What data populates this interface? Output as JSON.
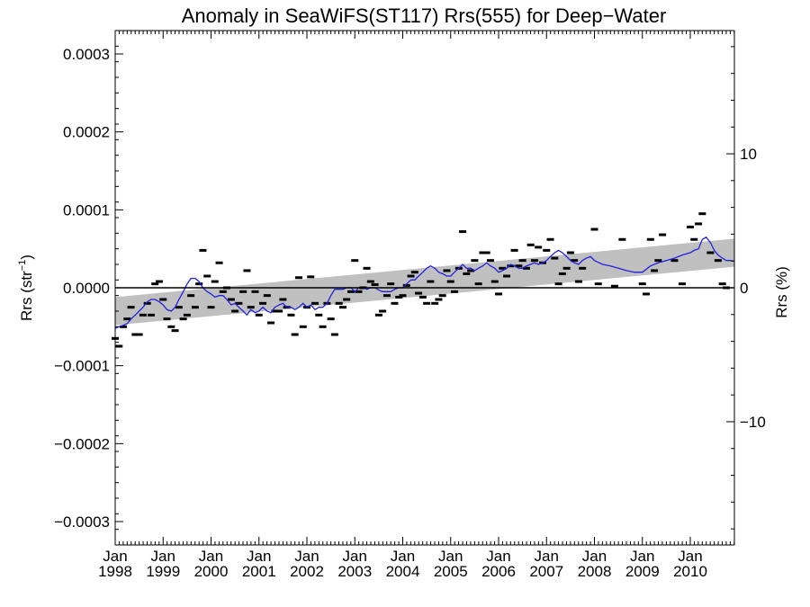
{
  "chart_data": {
    "type": "line",
    "title": "Anomaly in SeaWiFS(ST117) Rrs(555) for Deep−Water",
    "ylabel": "Rrs (str⁻¹)",
    "ylabel_base": "Rrs (str",
    "ylabel_sup": "−1",
    "ylabel_close": ")",
    "y2label": "Rrs (%)",
    "ylim": [
      -0.00033,
      0.00033
    ],
    "y_ticks": [
      -0.0003,
      -0.0002,
      -0.0001,
      0.0,
      0.0001,
      0.0002,
      0.0003
    ],
    "y_tick_labels": [
      "−0.0003",
      "−0.0002",
      "−0.0001",
      "0.0000",
      "0.0001",
      "0.0002",
      "0.0003"
    ],
    "y2lim": [
      -19.2,
      19.2
    ],
    "y2_ticks": [
      -10,
      0,
      10
    ],
    "y2_tick_labels": [
      "−10",
      "0",
      "10"
    ],
    "xlim": [
      1998.0,
      2010.92
    ],
    "x_ticks": [
      1998,
      1999,
      2000,
      2001,
      2002,
      2003,
      2004,
      2005,
      2006,
      2007,
      2008,
      2009,
      2010
    ],
    "x_tick_labels_month": [
      "Jan",
      "Jan",
      "Jan",
      "Jan",
      "Jan",
      "Jan",
      "Jan",
      "Jan",
      "Jan",
      "Jan",
      "Jan",
      "Jan",
      "Jan"
    ],
    "x_tick_labels_year": [
      "1998",
      "1999",
      "2000",
      "2001",
      "2002",
      "2003",
      "2004",
      "2005",
      "2006",
      "2007",
      "2008",
      "2009",
      "2010"
    ],
    "zero_line": 0.0,
    "trend_band": {
      "start_center": -3e-05,
      "end_center": 4.5e-05,
      "half_width": 1.8e-05,
      "color": "#c0c0c0"
    },
    "series": [
      {
        "kind": "marker",
        "color": "#000000",
        "x": [
          1998.0,
          1998.08,
          1998.17,
          1998.25,
          1998.33,
          1998.42,
          1998.5,
          1998.58,
          1998.67,
          1998.75,
          1998.83,
          1998.92,
          1999.0,
          1999.08,
          1999.17,
          1999.25,
          1999.33,
          1999.42,
          1999.5,
          1999.58,
          1999.67,
          1999.75,
          1999.83,
          1999.92,
          2000.0,
          2000.08,
          2000.17,
          2000.25,
          2000.33,
          2000.42,
          2000.5,
          2000.58,
          2000.67,
          2000.75,
          2000.83,
          2000.92,
          2001.0,
          2001.08,
          2001.17,
          2001.25,
          2001.33,
          2001.42,
          2001.5,
          2001.58,
          2001.67,
          2001.75,
          2001.83,
          2001.92,
          2002.0,
          2002.08,
          2002.17,
          2002.25,
          2002.33,
          2002.42,
          2002.5,
          2002.58,
          2002.67,
          2002.75,
          2002.83,
          2002.92,
          2003.0,
          2003.08,
          2003.17,
          2003.25,
          2003.33,
          2003.42,
          2003.5,
          2003.58,
          2003.67,
          2003.75,
          2003.83,
          2003.92,
          2004.0,
          2004.08,
          2004.17,
          2004.25,
          2004.33,
          2004.42,
          2004.5,
          2004.58,
          2004.67,
          2004.75,
          2004.83,
          2004.92,
          2005.0,
          2005.08,
          2005.17,
          2005.25,
          2005.33,
          2005.42,
          2005.5,
          2005.58,
          2005.67,
          2005.75,
          2005.83,
          2005.92,
          2006.0,
          2006.08,
          2006.17,
          2006.25,
          2006.33,
          2006.42,
          2006.5,
          2006.58,
          2006.67,
          2006.75,
          2006.83,
          2006.92,
          2007.0,
          2007.08,
          2007.17,
          2007.25,
          2007.33,
          2007.42,
          2007.5,
          2007.58,
          2007.67,
          2007.75,
          2008.0,
          2008.08,
          2008.42,
          2008.58,
          2009.0,
          2009.08,
          2009.17,
          2009.25,
          2009.33,
          2009.42,
          2009.67,
          2009.83,
          2010.0,
          2010.08,
          2010.17,
          2010.25,
          2010.42,
          2010.58,
          2010.67,
          2010.75
        ],
        "values": [
          -6.5e-05,
          -7.5e-05,
          -5e-05,
          -4e-05,
          -2.5e-05,
          -6e-05,
          -6e-05,
          -3.5e-05,
          -2e-05,
          -3.5e-05,
          5e-06,
          8e-06,
          -1.5e-05,
          -4e-05,
          -5e-05,
          -5.5e-05,
          -2.5e-05,
          -4e-05,
          -3.5e-05,
          -1e-05,
          -2.5e-05,
          5e-06,
          4.8e-05,
          1.5e-05,
          -2.5e-05,
          8e-06,
          3.2e-05,
          -5e-06,
          0.0,
          -1.5e-05,
          -3e-05,
          -2e-05,
          -5e-06,
          2.2e-05,
          -2.5e-05,
          -5e-06,
          -3.5e-05,
          -2e-05,
          -1e-05,
          -4.5e-05,
          -3e-05,
          -3e-05,
          -1.5e-05,
          -2.5e-05,
          -3.5e-05,
          -6e-05,
          1.3e-05,
          -5e-05,
          -2.5e-05,
          1.4e-05,
          -2e-05,
          -3.5e-05,
          -5e-05,
          -2e-05,
          -4e-05,
          -6e-05,
          -2e-05,
          -2.5e-05,
          -1.5e-05,
          -5e-06,
          3.5e-05,
          -5e-06,
          0.0,
          2.5e-05,
          8e-06,
          4e-06,
          -3.5e-05,
          -3e-05,
          -1e-05,
          5e-06,
          -2e-05,
          -1.2e-05,
          -1e-05,
          3e-06,
          1.5e-05,
          2e-05,
          -7e-06,
          -1.2e-05,
          -2e-05,
          8e-06,
          -2e-05,
          -1.5e-05,
          -1e-05,
          2.2e-05,
          8e-06,
          -5e-06,
          2.5e-05,
          7.2e-05,
          1.8e-05,
          2.2e-05,
          3.5e-05,
          5e-06,
          4.5e-05,
          4.5e-05,
          3.5e-05,
          8e-06,
          -8e-06,
          2.5e-05,
          1.5e-05,
          2.8e-05,
          4.8e-05,
          2.8e-05,
          3.5e-05,
          2.5e-05,
          5.5e-05,
          3.5e-05,
          5.2e-05,
          3.2e-05,
          4.8e-05,
          6.2e-05,
          3.8e-05,
          5e-06,
          1.8e-05,
          2.5e-05,
          4.5e-05,
          3.5e-05,
          8e-06,
          2.5e-05,
          7.5e-05,
          5e-06,
          2e-06,
          6.2e-05,
          5e-06,
          -8e-06,
          6.2e-05,
          2.2e-05,
          3.5e-05,
          6.8e-05,
          3.5e-05,
          5e-06,
          7.8e-05,
          6.2e-05,
          8.2e-05,
          9.5e-05,
          4.5e-05,
          3.5e-05,
          5e-06,
          0.0
        ]
      },
      {
        "kind": "line",
        "color": "#2222dd",
        "x": [
          1998.0,
          1998.08,
          1998.17,
          1998.25,
          1998.33,
          1998.42,
          1998.5,
          1998.58,
          1998.67,
          1998.75,
          1998.83,
          1998.92,
          1999.0,
          1999.08,
          1999.17,
          1999.25,
          1999.33,
          1999.42,
          1999.5,
          1999.58,
          1999.67,
          1999.75,
          1999.83,
          1999.92,
          2000.0,
          2000.08,
          2000.17,
          2000.25,
          2000.33,
          2000.42,
          2000.5,
          2000.58,
          2000.67,
          2000.75,
          2000.83,
          2000.92,
          2001.0,
          2001.08,
          2001.17,
          2001.25,
          2001.33,
          2001.42,
          2001.5,
          2001.58,
          2001.67,
          2001.75,
          2001.83,
          2001.92,
          2002.0,
          2002.08,
          2002.17,
          2002.25,
          2002.33,
          2002.42,
          2002.5,
          2002.58,
          2002.67,
          2002.75,
          2002.83,
          2002.92,
          2003.0,
          2003.08,
          2003.17,
          2003.25,
          2003.33,
          2003.42,
          2003.5,
          2003.58,
          2003.67,
          2003.75,
          2003.83,
          2003.92,
          2004.0,
          2004.08,
          2004.17,
          2004.25,
          2004.33,
          2004.42,
          2004.5,
          2004.58,
          2004.67,
          2004.75,
          2004.83,
          2004.92,
          2005.0,
          2005.08,
          2005.17,
          2005.25,
          2005.33,
          2005.42,
          2005.5,
          2005.58,
          2005.67,
          2005.75,
          2005.83,
          2005.92,
          2006.0,
          2006.08,
          2006.17,
          2006.25,
          2006.33,
          2006.42,
          2006.5,
          2006.58,
          2006.67,
          2006.75,
          2006.83,
          2006.92,
          2007.0,
          2007.08,
          2007.17,
          2007.25,
          2007.33,
          2007.42,
          2007.5,
          2007.58,
          2007.67,
          2007.75,
          2007.83,
          2007.92,
          2008.0,
          2008.17,
          2008.33,
          2008.5,
          2008.67,
          2008.83,
          2009.0,
          2009.17,
          2009.33,
          2009.5,
          2009.67,
          2009.83,
          2010.0,
          2010.08,
          2010.17,
          2010.25,
          2010.33,
          2010.42,
          2010.5,
          2010.58,
          2010.67,
          2010.75,
          2010.83,
          2010.92
        ],
        "values": [
          -5.2e-05,
          -5e-05,
          -4.8e-05,
          -4.6e-05,
          -4e-05,
          -3.5e-05,
          -3e-05,
          -2.5e-05,
          -1.8e-05,
          -1.5e-05,
          -1.5e-05,
          -1.8e-05,
          -2.2e-05,
          -2.8e-05,
          -3e-05,
          -2.5e-05,
          -1.5e-05,
          -5e-06,
          5e-06,
          1.2e-05,
          1.2e-05,
          8e-06,
          0.0,
          -5e-06,
          -8e-06,
          -1.2e-05,
          -1e-05,
          -1e-05,
          -1.5e-05,
          -2.2e-05,
          -2e-05,
          -2.5e-05,
          -3e-05,
          -3.5e-05,
          -2.8e-05,
          -3.2e-05,
          -3e-05,
          -2.5e-05,
          -3e-05,
          -3.2e-05,
          -2.5e-05,
          -2.2e-05,
          -2e-05,
          -2.5e-05,
          -2.5e-05,
          -2.8e-05,
          -2.5e-05,
          -2e-05,
          -2.5e-05,
          -2.2e-05,
          -2.8e-05,
          -2.5e-05,
          -2.5e-05,
          -2e-05,
          -1e-05,
          -2e-06,
          -2e-06,
          -2e-06,
          0.0,
          0.0,
          -5e-06,
          0.0,
          0.0,
          -2e-06,
          0.0,
          0.0,
          -3e-06,
          -5e-06,
          -5e-06,
          -5e-06,
          -2e-06,
          0.0,
          0.0,
          5e-06,
          1e-05,
          1e-05,
          1.5e-05,
          2e-05,
          2.5e-05,
          2.8e-05,
          2.5e-05,
          2e-05,
          1.8e-05,
          1.5e-05,
          1.5e-05,
          2e-05,
          2.5e-05,
          3e-05,
          2.5e-05,
          2.5e-05,
          2.2e-05,
          2.5e-05,
          2.8e-05,
          3.2e-05,
          2.8e-05,
          2.5e-05,
          2e-05,
          2.2e-05,
          2.5e-05,
          3e-05,
          2.8e-05,
          2.5e-05,
          2.5e-05,
          2.8e-05,
          3e-05,
          3.2e-05,
          3e-05,
          3.2e-05,
          3.5e-05,
          4e-05,
          4.5e-05,
          4.8e-05,
          4.5e-05,
          4e-05,
          3.5e-05,
          3.2e-05,
          3e-05,
          3.5e-05,
          3.8e-05,
          4e-05,
          3.5e-05,
          3e-05,
          2.8e-05,
          2.5e-05,
          2.2e-05,
          2e-05,
          2e-05,
          2.8e-05,
          3.2e-05,
          3.5e-05,
          3.8e-05,
          4.2e-05,
          4.5e-05,
          4.8e-05,
          5e-05,
          6.2e-05,
          6.5e-05,
          5.8e-05,
          4.8e-05,
          4.2e-05,
          3.8e-05,
          3.5e-05,
          3.5e-05,
          3.4e-05
        ]
      }
    ]
  }
}
